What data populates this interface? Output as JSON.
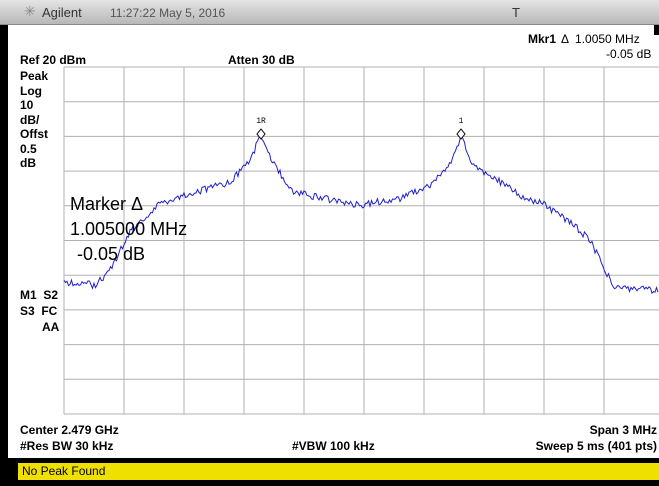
{
  "header": {
    "brand": "Agilent",
    "time": "11:27:22 May 5, 2016",
    "trigger": "T"
  },
  "marker_readout": {
    "label": "Mkr1",
    "delta": "Δ  1.0050 MHz",
    "level": "-0.05 dB"
  },
  "ref_level": "Ref 20 dBm",
  "attenuation": "Atten 30 dB",
  "left_labels": [
    "Peak",
    "Log",
    "10",
    "dB/",
    "Offst",
    "0.5",
    "dB"
  ],
  "left_status": [
    "M1  S2",
    "S3  FC",
    "AA"
  ],
  "markers": [
    "1R",
    "1"
  ],
  "overlay": [
    "Marker Δ",
    "1.005000 MHz",
    "-0.05 dB"
  ],
  "footer": {
    "center": "Center 2.479 GHz",
    "span": "Span 3 MHz",
    "rbw": "#Res BW 30 kHz",
    "vbw": "#VBW 100 kHz",
    "sweep": "Sweep 5 ms (401 pts)"
  },
  "status": "No Peak Found"
}
